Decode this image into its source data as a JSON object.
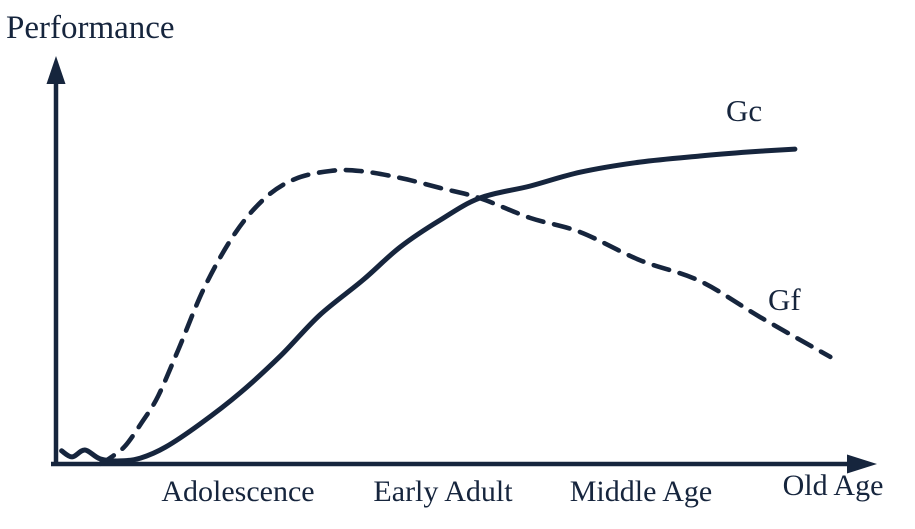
{
  "colors": {
    "ink": "#16253d",
    "background": "#ffffff"
  },
  "chart_data": {
    "type": "line",
    "title": "",
    "ylabel": "Performance",
    "xlabel": "",
    "x_stages": [
      "Adolescence",
      "Early Adult",
      "Middle Age",
      "Old Age"
    ],
    "axes": {
      "x_style": "arrow-right, unlabeled-ticks-none",
      "y_style": "arrow-up, unlabeled-ticks-none",
      "x_range_conceptual": [
        "childhood",
        "old age"
      ],
      "y_range_conceptual": [
        "low",
        "high"
      ],
      "grid": false
    },
    "legend": {
      "shown": false,
      "labels_inline": [
        "Gc",
        "Gf"
      ]
    },
    "series": [
      {
        "name": "Gc",
        "line_style": "solid",
        "description": "Crystallized intelligence: small wiggle near origin, S-shaped rise through adolescence and early adulthood, then gradual plateau still slightly rising into old age",
        "points_pct": [
          [
            0.7,
            3.5
          ],
          [
            2.0,
            2.0
          ],
          [
            3.6,
            3.7
          ],
          [
            5.5,
            1.5
          ],
          [
            8.0,
            1.0
          ],
          [
            10.5,
            1.7
          ],
          [
            13.6,
            4.4
          ],
          [
            17.9,
            10.1
          ],
          [
            22.9,
            17.8
          ],
          [
            27.9,
            26.9
          ],
          [
            32.8,
            37.0
          ],
          [
            38.2,
            45.7
          ],
          [
            42.8,
            53.8
          ],
          [
            47.8,
            60.5
          ],
          [
            52.7,
            65.9
          ],
          [
            59.0,
            68.9
          ],
          [
            65.2,
            72.3
          ],
          [
            72.6,
            74.8
          ],
          [
            80.1,
            76.3
          ],
          [
            86.3,
            77.3
          ],
          [
            91.9,
            78.0
          ]
        ]
      },
      {
        "name": "Gf",
        "line_style": "dashed",
        "description": "Fluid intelligence: steep rise in adolescence, peak around early adulthood, then steady decline through middle and old age",
        "points_pct": [
          [
            5.5,
            0.3
          ],
          [
            6.7,
            1.7
          ],
          [
            8.6,
            4.7
          ],
          [
            10.7,
            10.6
          ],
          [
            12.7,
            17.0
          ],
          [
            15.2,
            28.4
          ],
          [
            18.5,
            44.0
          ],
          [
            22.3,
            57.3
          ],
          [
            26.0,
            65.9
          ],
          [
            29.7,
            70.6
          ],
          [
            34.1,
            72.6
          ],
          [
            37.8,
            72.6
          ],
          [
            42.8,
            70.9
          ],
          [
            47.8,
            68.4
          ],
          [
            52.7,
            65.9
          ],
          [
            59.0,
            61.0
          ],
          [
            65.2,
            57.5
          ],
          [
            72.6,
            50.6
          ],
          [
            80.1,
            45.4
          ],
          [
            87.6,
            36.5
          ],
          [
            96.3,
            26.7
          ]
        ]
      }
    ],
    "annotations": [
      {
        "text": "Gc",
        "attached_to": "solid curve end, upper right"
      },
      {
        "text": "Gf",
        "attached_to": "dashed curve descent, lower right"
      }
    ],
    "crossing_note": "Curves intersect between Early Adult and Middle Age"
  }
}
